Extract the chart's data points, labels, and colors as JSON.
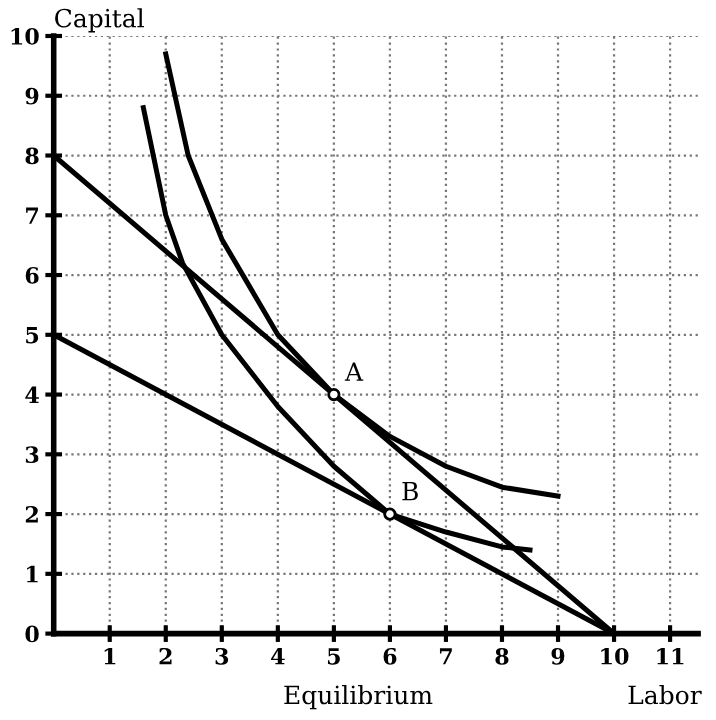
{
  "chart_data": {
    "type": "line",
    "title": "Equilibrium",
    "xlabel": "Labor",
    "ylabel": "Capital",
    "xlim": [
      0,
      11.5
    ],
    "ylim": [
      0,
      10
    ],
    "xticks": [
      1,
      2,
      3,
      4,
      5,
      6,
      7,
      8,
      9,
      10,
      11
    ],
    "yticks": [
      0,
      1,
      2,
      3,
      4,
      5,
      6,
      7,
      8,
      9,
      10
    ],
    "grid": true,
    "legend": false,
    "line_style": "solid",
    "marker": "none",
    "series": [
      {
        "color": "#000000",
        "x": [
          0,
          10
        ],
        "values": [
          8,
          0
        ]
      },
      {
        "color": "#000000",
        "x": [
          0,
          10
        ],
        "values": [
          5,
          0
        ]
      },
      {
        "color": "#000000",
        "x": [
          2,
          2.4,
          3,
          4,
          5,
          6,
          7,
          8,
          9
        ],
        "values": [
          9.7,
          8,
          6.6,
          5,
          4,
          3.3,
          2.8,
          2.45,
          2.3
        ]
      },
      {
        "color": "#000000",
        "x": [
          1.6,
          2,
          2.3,
          3,
          4,
          5,
          6,
          7,
          8,
          8.5
        ],
        "values": [
          8.8,
          7,
          6.2,
          5,
          3.8,
          2.8,
          2,
          1.7,
          1.45,
          1.4
        ]
      },
      {
        "type": "scatter",
        "color": "#000000",
        "marker": "circle",
        "x": [
          5,
          6
        ],
        "values": [
          4,
          2
        ]
      }
    ],
    "annotations": [
      {
        "text": "A",
        "x": 5,
        "y": 4
      },
      {
        "text": "B",
        "x": 6,
        "y": 2
      }
    ]
  }
}
